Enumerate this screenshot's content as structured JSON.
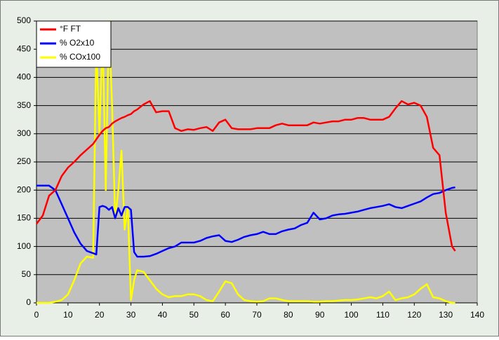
{
  "chart_data": {
    "type": "line",
    "x": [
      0,
      2,
      4,
      6,
      8,
      10,
      12,
      14,
      16,
      18,
      19,
      20,
      21,
      22,
      23,
      24,
      25,
      26,
      27,
      28,
      29,
      30,
      31,
      32,
      34,
      36,
      38,
      40,
      42,
      44,
      46,
      48,
      50,
      52,
      54,
      56,
      58,
      60,
      62,
      64,
      66,
      68,
      70,
      72,
      74,
      76,
      78,
      80,
      82,
      84,
      86,
      88,
      90,
      92,
      94,
      96,
      98,
      100,
      102,
      104,
      106,
      108,
      110,
      112,
      114,
      116,
      118,
      120,
      122,
      124,
      126,
      128,
      130,
      132,
      133
    ],
    "series": [
      {
        "name": "°F FT",
        "color": "#ff0000",
        "values": [
          140,
          155,
          190,
          200,
          225,
          240,
          250,
          262,
          272,
          282,
          290,
          298,
          305,
          310,
          312,
          318,
          322,
          325,
          328,
          330,
          333,
          335,
          340,
          343,
          352,
          358,
          338,
          340,
          340,
          310,
          305,
          308,
          307,
          310,
          312,
          305,
          320,
          325,
          310,
          308,
          308,
          308,
          310,
          310,
          310,
          315,
          318,
          315,
          315,
          315,
          315,
          320,
          318,
          320,
          322,
          322,
          325,
          325,
          328,
          328,
          325,
          325,
          325,
          330,
          345,
          358,
          352,
          355,
          350,
          330,
          275,
          262,
          160,
          100,
          92
        ]
      },
      {
        "name": "% O2x10",
        "color": "#0000ff",
        "values": [
          208,
          208,
          208,
          200,
          175,
          150,
          125,
          105,
          92,
          88,
          86,
          170,
          172,
          170,
          165,
          170,
          150,
          168,
          155,
          170,
          170,
          165,
          90,
          82,
          82,
          83,
          87,
          92,
          97,
          100,
          107,
          107,
          107,
          110,
          115,
          118,
          120,
          110,
          108,
          112,
          117,
          120,
          122,
          126,
          122,
          122,
          127,
          130,
          132,
          138,
          142,
          160,
          148,
          150,
          155,
          157,
          158,
          160,
          162,
          165,
          168,
          170,
          172,
          175,
          170,
          168,
          172,
          176,
          180,
          187,
          193,
          195,
          200,
          204,
          205
        ]
      },
      {
        "name": "% COx100",
        "color": "#ffff00",
        "values": [
          0,
          0,
          0,
          2,
          5,
          15,
          40,
          70,
          82,
          80,
          460,
          300,
          480,
          200,
          500,
          350,
          150,
          200,
          270,
          130,
          170,
          5,
          40,
          58,
          55,
          40,
          25,
          15,
          10,
          12,
          12,
          15,
          15,
          12,
          5,
          3,
          20,
          38,
          35,
          15,
          5,
          3,
          2,
          3,
          8,
          8,
          5,
          3,
          3,
          3,
          3,
          2,
          2,
          3,
          3,
          4,
          5,
          5,
          6,
          8,
          10,
          8,
          12,
          20,
          5,
          8,
          10,
          15,
          25,
          33,
          10,
          8,
          3,
          0,
          0
        ]
      }
    ],
    "xlim": [
      0,
      140
    ],
    "xticks": [
      0,
      10,
      20,
      30,
      40,
      50,
      60,
      70,
      80,
      90,
      100,
      110,
      120,
      130,
      140
    ],
    "ylim": [
      0,
      500
    ],
    "yticks": [
      0,
      50,
      100,
      150,
      200,
      250,
      300,
      350,
      400,
      450,
      500
    ],
    "grid": true,
    "legend": "top-left"
  }
}
